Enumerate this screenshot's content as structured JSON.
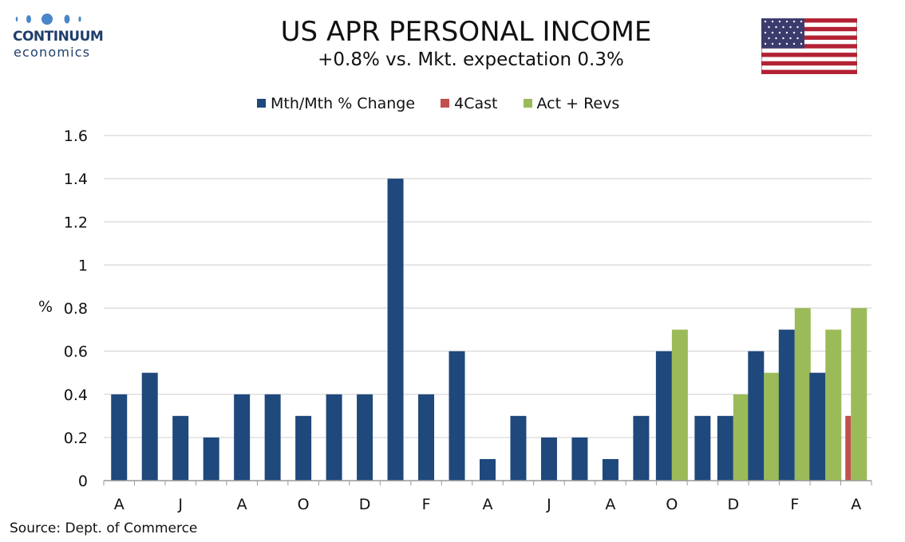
{
  "brand": {
    "name": "CONTINUUM",
    "sub": "economics"
  },
  "flag_icon": "us-flag-icon",
  "colors": {
    "primary": "#1f487c",
    "forecast": "#c0504d",
    "actual": "#9bbb59",
    "grid": "#cfcfcf"
  },
  "source": "Source: Dept. of Commerce",
  "chart_data": {
    "type": "bar",
    "title": "US APR PERSONAL INCOME",
    "subtitle": "+0.8% vs. Mkt. expectation 0.3%",
    "ylabel": "%",
    "ylim": [
      0,
      1.6
    ],
    "yticks": [
      0,
      0.2,
      0.4,
      0.6,
      0.8,
      1,
      1.2,
      1.4,
      1.6
    ],
    "ytick_labels": [
      "0",
      "0.2",
      "0.4",
      "0.6",
      "0.8",
      "1",
      "1.2",
      "1.4",
      "1.6"
    ],
    "grid": true,
    "legend": "top",
    "categories": [
      "A",
      "M",
      "J",
      "J",
      "A",
      "S",
      "O",
      "N",
      "D",
      "J",
      "F",
      "M",
      "A",
      "M",
      "J",
      "J",
      "A",
      "S",
      "O",
      "N",
      "D",
      "J",
      "F",
      "M",
      "A"
    ],
    "xtick_labels": [
      "A",
      "",
      "J",
      "",
      "A",
      "",
      "O",
      "",
      "D",
      "",
      "F",
      "",
      "A",
      "",
      "J",
      "",
      "A",
      "",
      "O",
      "",
      "D",
      "",
      "F",
      "",
      "A"
    ],
    "series": [
      {
        "name": "Mth/Mth % Change",
        "color": "#1f487c",
        "values": [
          0.4,
          0.5,
          0.3,
          0.2,
          0.4,
          0.4,
          0.3,
          0.4,
          0.4,
          1.4,
          0.4,
          0.6,
          0.1,
          0.3,
          0.2,
          0.2,
          0.1,
          0.3,
          0.6,
          0.3,
          0.3,
          0.6,
          0.7,
          0.5,
          null
        ]
      },
      {
        "name": "4Cast",
        "color": "#c0504d",
        "values": [
          null,
          null,
          null,
          null,
          null,
          null,
          null,
          null,
          null,
          null,
          null,
          null,
          null,
          null,
          null,
          null,
          null,
          null,
          null,
          null,
          null,
          null,
          null,
          null,
          0.3
        ]
      },
      {
        "name": "Act + Revs",
        "color": "#9bbb59",
        "values": [
          null,
          null,
          null,
          null,
          null,
          null,
          null,
          null,
          null,
          null,
          null,
          null,
          null,
          null,
          null,
          null,
          null,
          null,
          0.7,
          null,
          0.4,
          0.5,
          0.8,
          0.7,
          0.8
        ]
      }
    ]
  }
}
